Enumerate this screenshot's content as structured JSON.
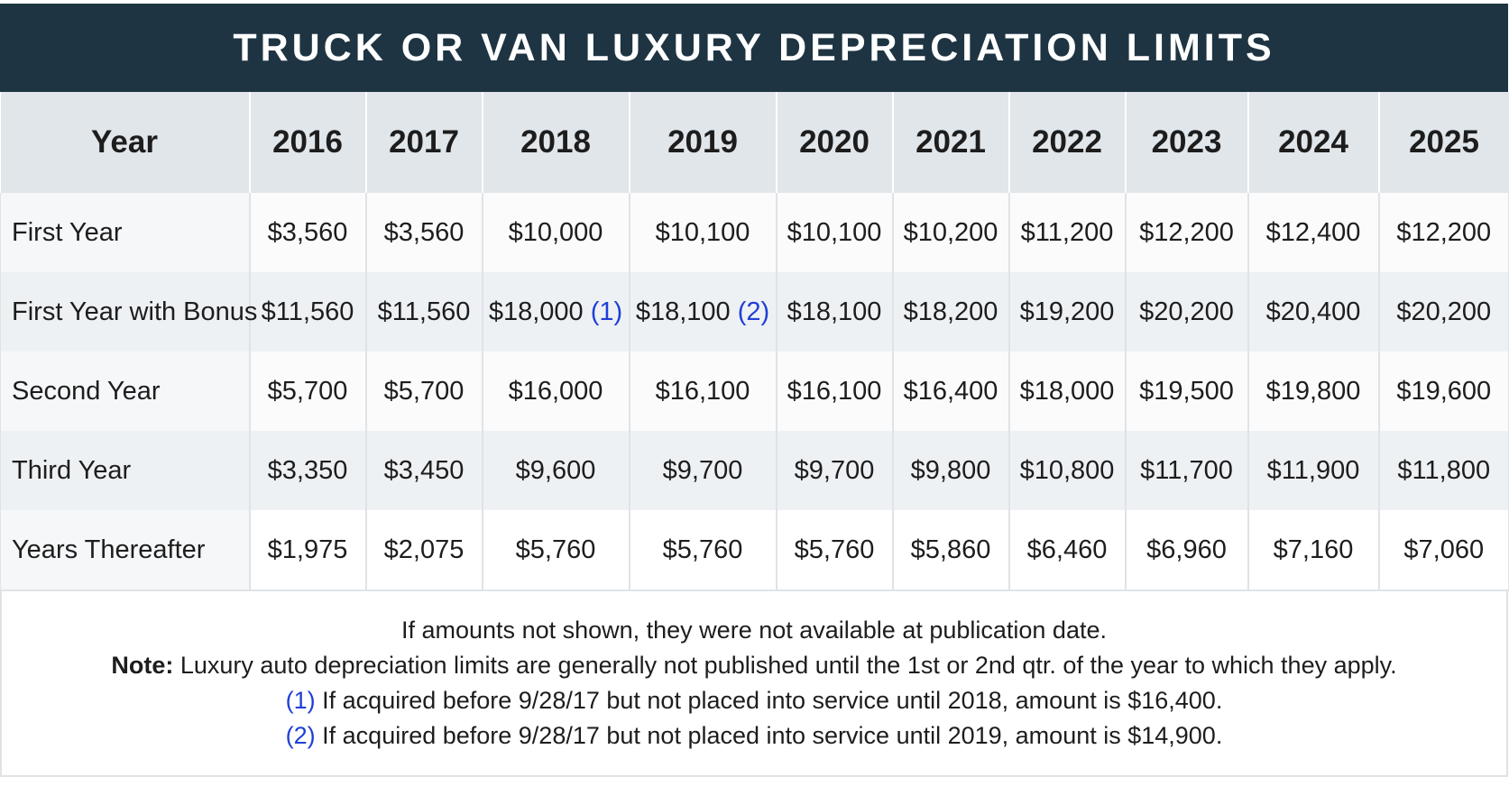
{
  "title": "TRUCK OR VAN LUXURY DEPRECIATION LIMITS",
  "colors": {
    "title_bg": "#1e3442",
    "header_bg": "#e1e6ea",
    "footnote_ref": "#1f3fd6"
  },
  "table": {
    "columns": [
      "Year",
      "2016",
      "2017",
      "2018",
      "2019",
      "2020",
      "2021",
      "2022",
      "2023",
      "2024",
      "2025"
    ],
    "rows": [
      {
        "label": "First Year",
        "cells": [
          {
            "value": "$3,560"
          },
          {
            "value": "$3,560"
          },
          {
            "value": "$10,000"
          },
          {
            "value": "$10,100"
          },
          {
            "value": "$10,100"
          },
          {
            "value": "$10,200"
          },
          {
            "value": "$11,200"
          },
          {
            "value": "$12,200"
          },
          {
            "value": "$12,400"
          },
          {
            "value": "$12,200"
          }
        ]
      },
      {
        "label": "First Year with Bonus",
        "cells": [
          {
            "value": "$11,560"
          },
          {
            "value": "$11,560"
          },
          {
            "value": "$18,000",
            "ref": "(1)"
          },
          {
            "value": "$18,100",
            "ref": "(2)"
          },
          {
            "value": "$18,100"
          },
          {
            "value": "$18,200"
          },
          {
            "value": "$19,200"
          },
          {
            "value": "$20,200"
          },
          {
            "value": "$20,400"
          },
          {
            "value": "$20,200"
          }
        ]
      },
      {
        "label": "Second Year",
        "cells": [
          {
            "value": "$5,700"
          },
          {
            "value": "$5,700"
          },
          {
            "value": "$16,000"
          },
          {
            "value": "$16,100"
          },
          {
            "value": "$16,100"
          },
          {
            "value": "$16,400"
          },
          {
            "value": "$18,000"
          },
          {
            "value": "$19,500"
          },
          {
            "value": "$19,800"
          },
          {
            "value": "$19,600"
          }
        ]
      },
      {
        "label": "Third Year",
        "cells": [
          {
            "value": "$3,350"
          },
          {
            "value": "$3,450"
          },
          {
            "value": "$9,600"
          },
          {
            "value": "$9,700"
          },
          {
            "value": "$9,700"
          },
          {
            "value": "$9,800"
          },
          {
            "value": "$10,800"
          },
          {
            "value": "$11,700"
          },
          {
            "value": "$11,900"
          },
          {
            "value": "$11,800"
          }
        ]
      },
      {
        "label": "Years Thereafter",
        "cells": [
          {
            "value": "$1,975"
          },
          {
            "value": "$2,075"
          },
          {
            "value": "$5,760"
          },
          {
            "value": "$5,760"
          },
          {
            "value": "$5,760"
          },
          {
            "value": "$5,860"
          },
          {
            "value": "$6,460"
          },
          {
            "value": "$6,960"
          },
          {
            "value": "$7,160"
          },
          {
            "value": "$7,060"
          }
        ]
      }
    ]
  },
  "notes": {
    "line1": "If amounts not shown, they were not available at publication date.",
    "note_label": "Note:",
    "note_text": " Luxury auto depreciation limits are generally not published until the 1st or 2nd qtr. of the year to which they apply.",
    "footnote1_ref": "(1)",
    "footnote1_text": " If acquired before 9/28/17 but not placed into service until 2018, amount is $16,400.",
    "footnote2_ref": "(2)",
    "footnote2_text": " If acquired before 9/28/17 but not placed into service until 2019, amount is $14,900."
  }
}
